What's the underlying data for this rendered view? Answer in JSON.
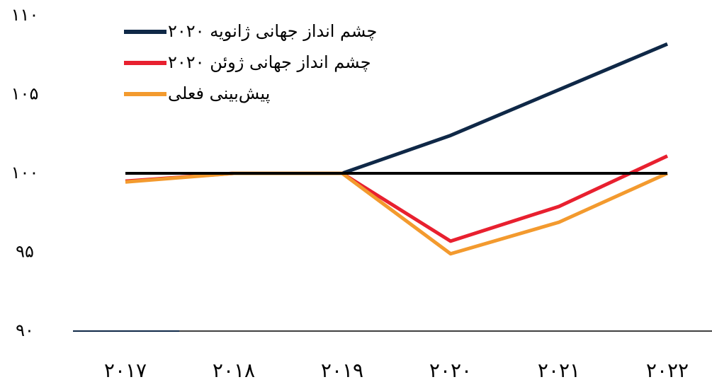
{
  "chart_data": {
    "type": "line",
    "categories": [
      "۲۰۱۷",
      "۲۰۱۸",
      "۲۰۱۹",
      "۲۰۲۰",
      "۲۰۲۱",
      "۲۰۲۲"
    ],
    "series": [
      {
        "name": "چشم انداز جهانی ژانویه ۲۰۲۰",
        "color": "#0f2847",
        "values": [
          null,
          null,
          100,
          102.4,
          105.3,
          108.2
        ]
      },
      {
        "name": "چشم انداز جهانی ژوئن ۲۰۲۰",
        "color": "#e8202f",
        "values": [
          99.5,
          100,
          100,
          95.7,
          97.9,
          101.1
        ]
      },
      {
        "name": "پیش‌بینی فعلی",
        "color": "#f39a2e",
        "values": [
          99.45,
          100,
          100,
          94.9,
          96.9,
          100
        ]
      }
    ],
    "reference_line": {
      "value": 100,
      "color": "#000000"
    },
    "ylim": [
      90,
      110
    ],
    "yticks": [
      {
        "value": 90,
        "label": "۹۰"
      },
      {
        "value": 95,
        "label": "۹۵"
      },
      {
        "value": 100,
        "label": "۱۰۰"
      },
      {
        "value": 105,
        "label": "۱۰۵"
      },
      {
        "value": 110,
        "label": "۱۱۰"
      }
    ],
    "grid": false,
    "legend": "top-left"
  }
}
